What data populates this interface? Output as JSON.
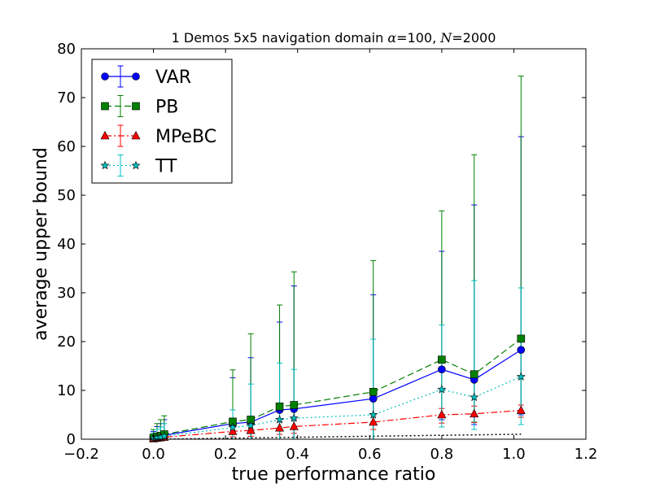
{
  "chart_data": {
    "type": "line",
    "title_prefix": "1 Demos 5x5 navigation domain ",
    "title_alpha": "α",
    "title_alpha_value": "=100, ",
    "title_n": "N",
    "title_n_value": "=2000",
    "xlabel": "true performance ratio",
    "ylabel": "average upper bound",
    "xlim": [
      -0.2,
      1.2
    ],
    "ylim": [
      0,
      80
    ],
    "xticks": [
      -0.2,
      0.0,
      0.2,
      0.4,
      0.6,
      0.8,
      1.0,
      1.2
    ],
    "xtick_labels": [
      "−0.2",
      "0.0",
      "0.2",
      "0.4",
      "0.6",
      "0.8",
      "1.0",
      "1.2"
    ],
    "yticks": [
      0,
      10,
      20,
      30,
      40,
      50,
      60,
      70,
      80
    ],
    "ytick_labels": [
      "0",
      "10",
      "20",
      "30",
      "40",
      "50",
      "60",
      "70",
      "80"
    ],
    "grid": false,
    "legend_position": "top-left",
    "x": [
      0.0,
      0.01,
      0.02,
      0.03,
      0.22,
      0.27,
      0.35,
      0.39,
      0.61,
      0.8,
      0.89,
      1.02
    ],
    "series": [
      {
        "name": "VAR",
        "color": "#0000ff",
        "marker": "circle",
        "dash": "solid",
        "values": [
          0.2,
          0.4,
          0.5,
          0.8,
          3.2,
          3.5,
          6.0,
          6.2,
          8.3,
          14.3,
          12.2,
          18.3
        ],
        "err_high": [
          1.6,
          2.6,
          3.2,
          4.0,
          12.6,
          16.7,
          24.0,
          31.4,
          29.6,
          38.5,
          48.0,
          62.0
        ],
        "err_low": [
          0.0,
          0.0,
          0.0,
          0.0,
          0.0,
          0.0,
          0.0,
          0.0,
          0.0,
          4.0,
          3.0,
          5.0
        ]
      },
      {
        "name": "PB",
        "color": "#008000",
        "marker": "square",
        "dash": "dashed",
        "values": [
          0.3,
          0.5,
          0.7,
          1.0,
          3.6,
          4.0,
          6.7,
          7.0,
          9.7,
          16.3,
          13.3,
          20.6
        ],
        "err_high": [
          2.0,
          3.2,
          4.0,
          4.8,
          14.2,
          21.6,
          27.5,
          34.3,
          36.6,
          46.8,
          58.3,
          74.4
        ],
        "err_low": [
          0.0,
          0.0,
          0.0,
          0.0,
          0.0,
          0.0,
          0.0,
          0.0,
          0.0,
          4.5,
          3.5,
          5.5
        ]
      },
      {
        "name": "MPeBC",
        "color": "#ff0000",
        "marker": "triangle",
        "dash": "dashdot",
        "values": [
          0.1,
          0.2,
          0.3,
          0.4,
          1.6,
          1.8,
          2.3,
          2.6,
          3.5,
          5.0,
          5.2,
          5.9
        ],
        "err_high": [
          0.8,
          1.2,
          1.4,
          1.6,
          3.0,
          3.2,
          3.6,
          4.0,
          5.0,
          6.3,
          6.8,
          7.0
        ],
        "err_low": [
          0.0,
          0.0,
          0.0,
          0.0,
          0.5,
          0.6,
          1.0,
          1.2,
          2.0,
          3.3,
          3.4,
          4.5
        ]
      },
      {
        "name": "TT",
        "color": "#00bfbf",
        "marker": "star",
        "dash": "dotted",
        "values": [
          0.2,
          0.3,
          0.4,
          0.6,
          2.4,
          2.8,
          4.0,
          4.3,
          5.0,
          10.2,
          8.6,
          12.8
        ],
        "err_high": [
          1.3,
          2.0,
          2.5,
          3.2,
          6.0,
          11.3,
          15.6,
          14.3,
          20.5,
          23.4,
          32.5,
          31.0
        ],
        "err_low": [
          0.0,
          0.0,
          0.0,
          0.0,
          0.0,
          0.0,
          0.0,
          0.0,
          0.0,
          2.5,
          2.0,
          3.0
        ]
      }
    ],
    "reference_line": {
      "color": "#000000",
      "dash": "dotted",
      "x": [
        0.0,
        0.22,
        0.39,
        0.61,
        0.8,
        1.02
      ],
      "values": [
        0.0,
        0.22,
        0.39,
        0.61,
        0.8,
        1.02
      ]
    }
  }
}
